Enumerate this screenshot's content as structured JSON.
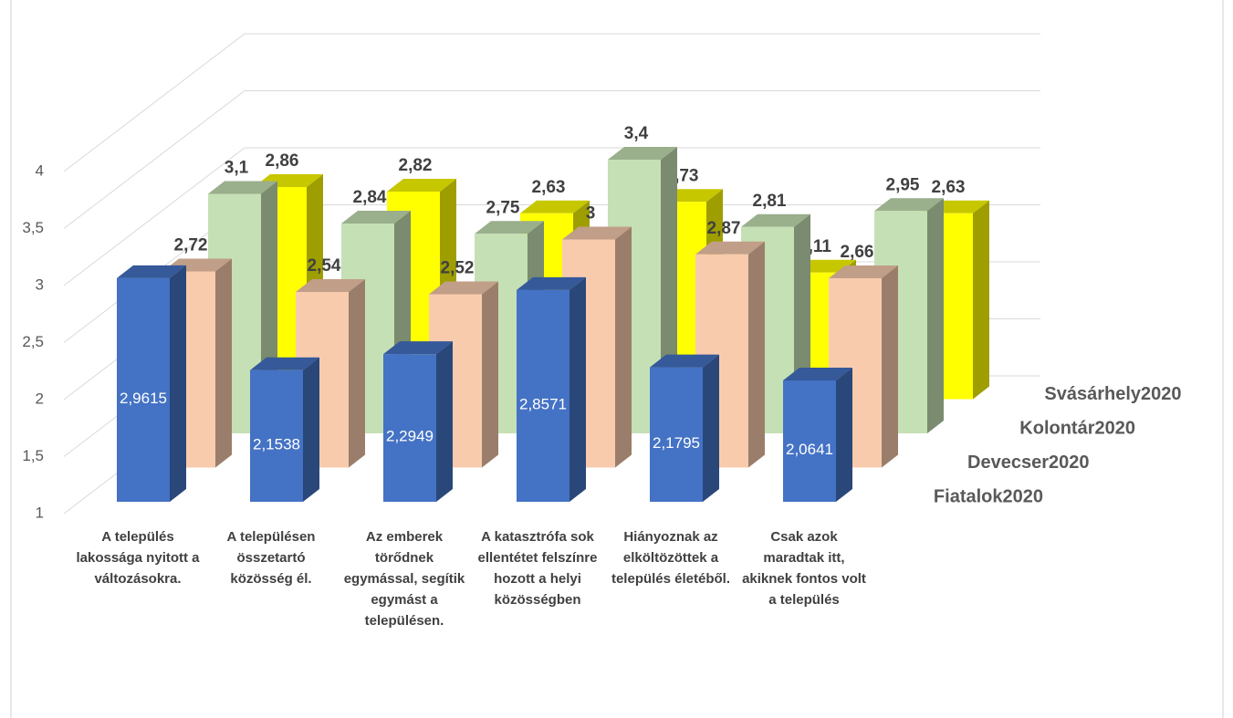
{
  "chart_data": {
    "type": "bar3d",
    "categories": [
      "A település lakossága nyitott a változásokra.",
      "A településen összetartó közösség él.",
      "Az emberek törődnek egymással, segítik egymást a településen.",
      "A katasztrófa sok ellentétet felszínre hozott a helyi közösségben",
      "Hiányoznak az elköltözöttek a település életéből.",
      "Csak azok maradtak itt, akiknek fontos volt a település"
    ],
    "series": [
      {
        "name": "Fiatalok2020",
        "color": "#4472c4",
        "values": [
          2.9615,
          2.1538,
          2.2949,
          2.8571,
          2.1795,
          2.0641
        ],
        "value_labels": [
          "2,9615",
          "2,1538",
          "2,2949",
          "2,8571",
          "2,1795",
          "2,0641"
        ]
      },
      {
        "name": "Devecser2020",
        "color": "#f8cbad",
        "values": [
          2.72,
          2.54,
          2.52,
          3,
          2.87,
          2.66
        ],
        "value_labels": [
          "2,72",
          "2,54",
          "2,52",
          "3",
          "2,87",
          "2,66"
        ]
      },
      {
        "name": "Kolontár2020",
        "color": "#c5e0b4",
        "values": [
          3.1,
          2.84,
          2.75,
          3.4,
          2.81,
          2.95
        ],
        "value_labels": [
          "3,1",
          "2,84",
          "2,75",
          "3,4",
          "2,81",
          "2,95"
        ]
      },
      {
        "name": "Svásárhely2020",
        "color": "#ffff00",
        "values": [
          2.86,
          2.82,
          2.63,
          2.73,
          2.11,
          2.63
        ],
        "value_labels": [
          "2,86",
          "2,82",
          "2,63",
          "2,73",
          "2,11",
          "2,63"
        ]
      }
    ],
    "ylim": [
      1,
      4
    ],
    "yticks": [
      1,
      {
        "value": 1.5,
        "label": "1,5"
      },
      2,
      {
        "value": 2.5,
        "label": "2,5"
      },
      3,
      {
        "value": 3.5,
        "label": "3,5"
      },
      4
    ],
    "grid": true
  }
}
